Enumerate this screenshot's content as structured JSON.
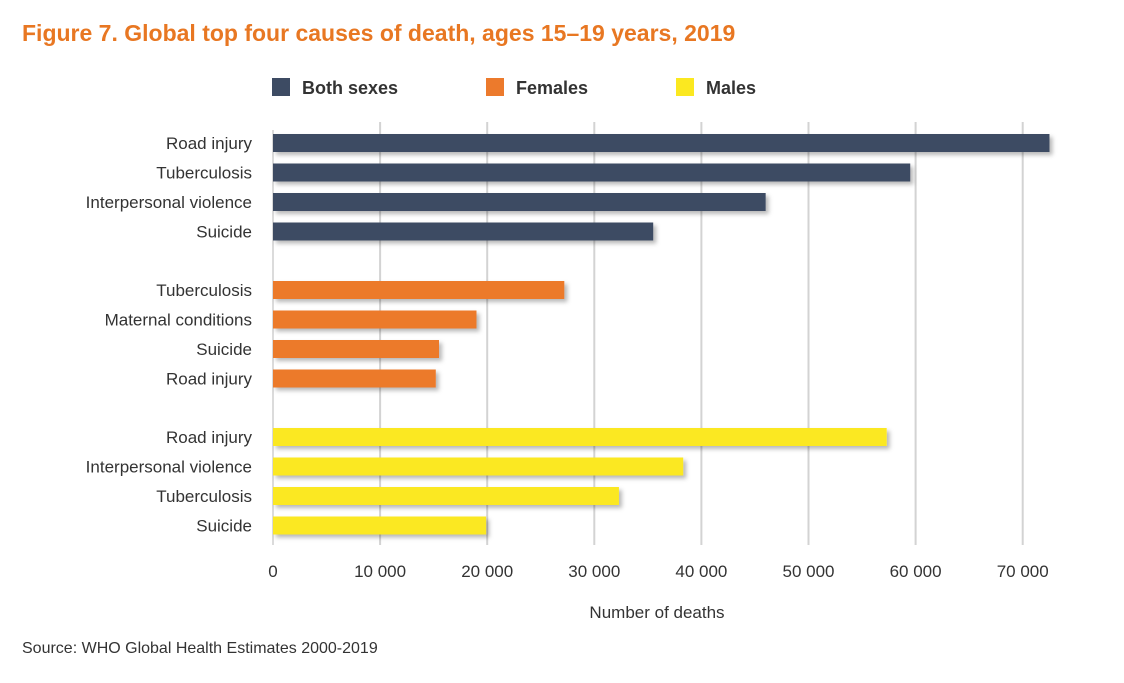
{
  "title": "Figure 7. Global top four causes of death, ages 15–19 years, 2019",
  "source": "Source: WHO Global Health Estimates 2000-2019",
  "chart_data": {
    "type": "bar",
    "orientation": "horizontal",
    "xlabel": "Number of deaths",
    "xlim": [
      0,
      70000
    ],
    "xticks": [
      0,
      10000,
      20000,
      30000,
      40000,
      50000,
      60000,
      70000
    ],
    "xtick_labels": [
      "0",
      "10 000",
      "20 000",
      "30 000",
      "40 000",
      "50 000",
      "60 000",
      "70 000"
    ],
    "grid": "vertical",
    "legend_position": "top",
    "series": [
      {
        "name": "Both sexes",
        "color": "#3d4b63",
        "categories": [
          "Road injury",
          "Tuberculosis",
          "Interpersonal violence",
          "Suicide"
        ],
        "values": [
          72500,
          59500,
          46000,
          35500
        ]
      },
      {
        "name": "Females",
        "color": "#ec7a2c",
        "categories": [
          "Tuberculosis",
          "Maternal conditions",
          "Suicide",
          "Road injury"
        ],
        "values": [
          27200,
          19000,
          15500,
          15200
        ]
      },
      {
        "name": "Males",
        "color": "#fbe820",
        "categories": [
          "Road injury",
          "Interpersonal violence",
          "Tuberculosis",
          "Suicide"
        ],
        "values": [
          57300,
          38300,
          32300,
          19900
        ]
      }
    ]
  }
}
